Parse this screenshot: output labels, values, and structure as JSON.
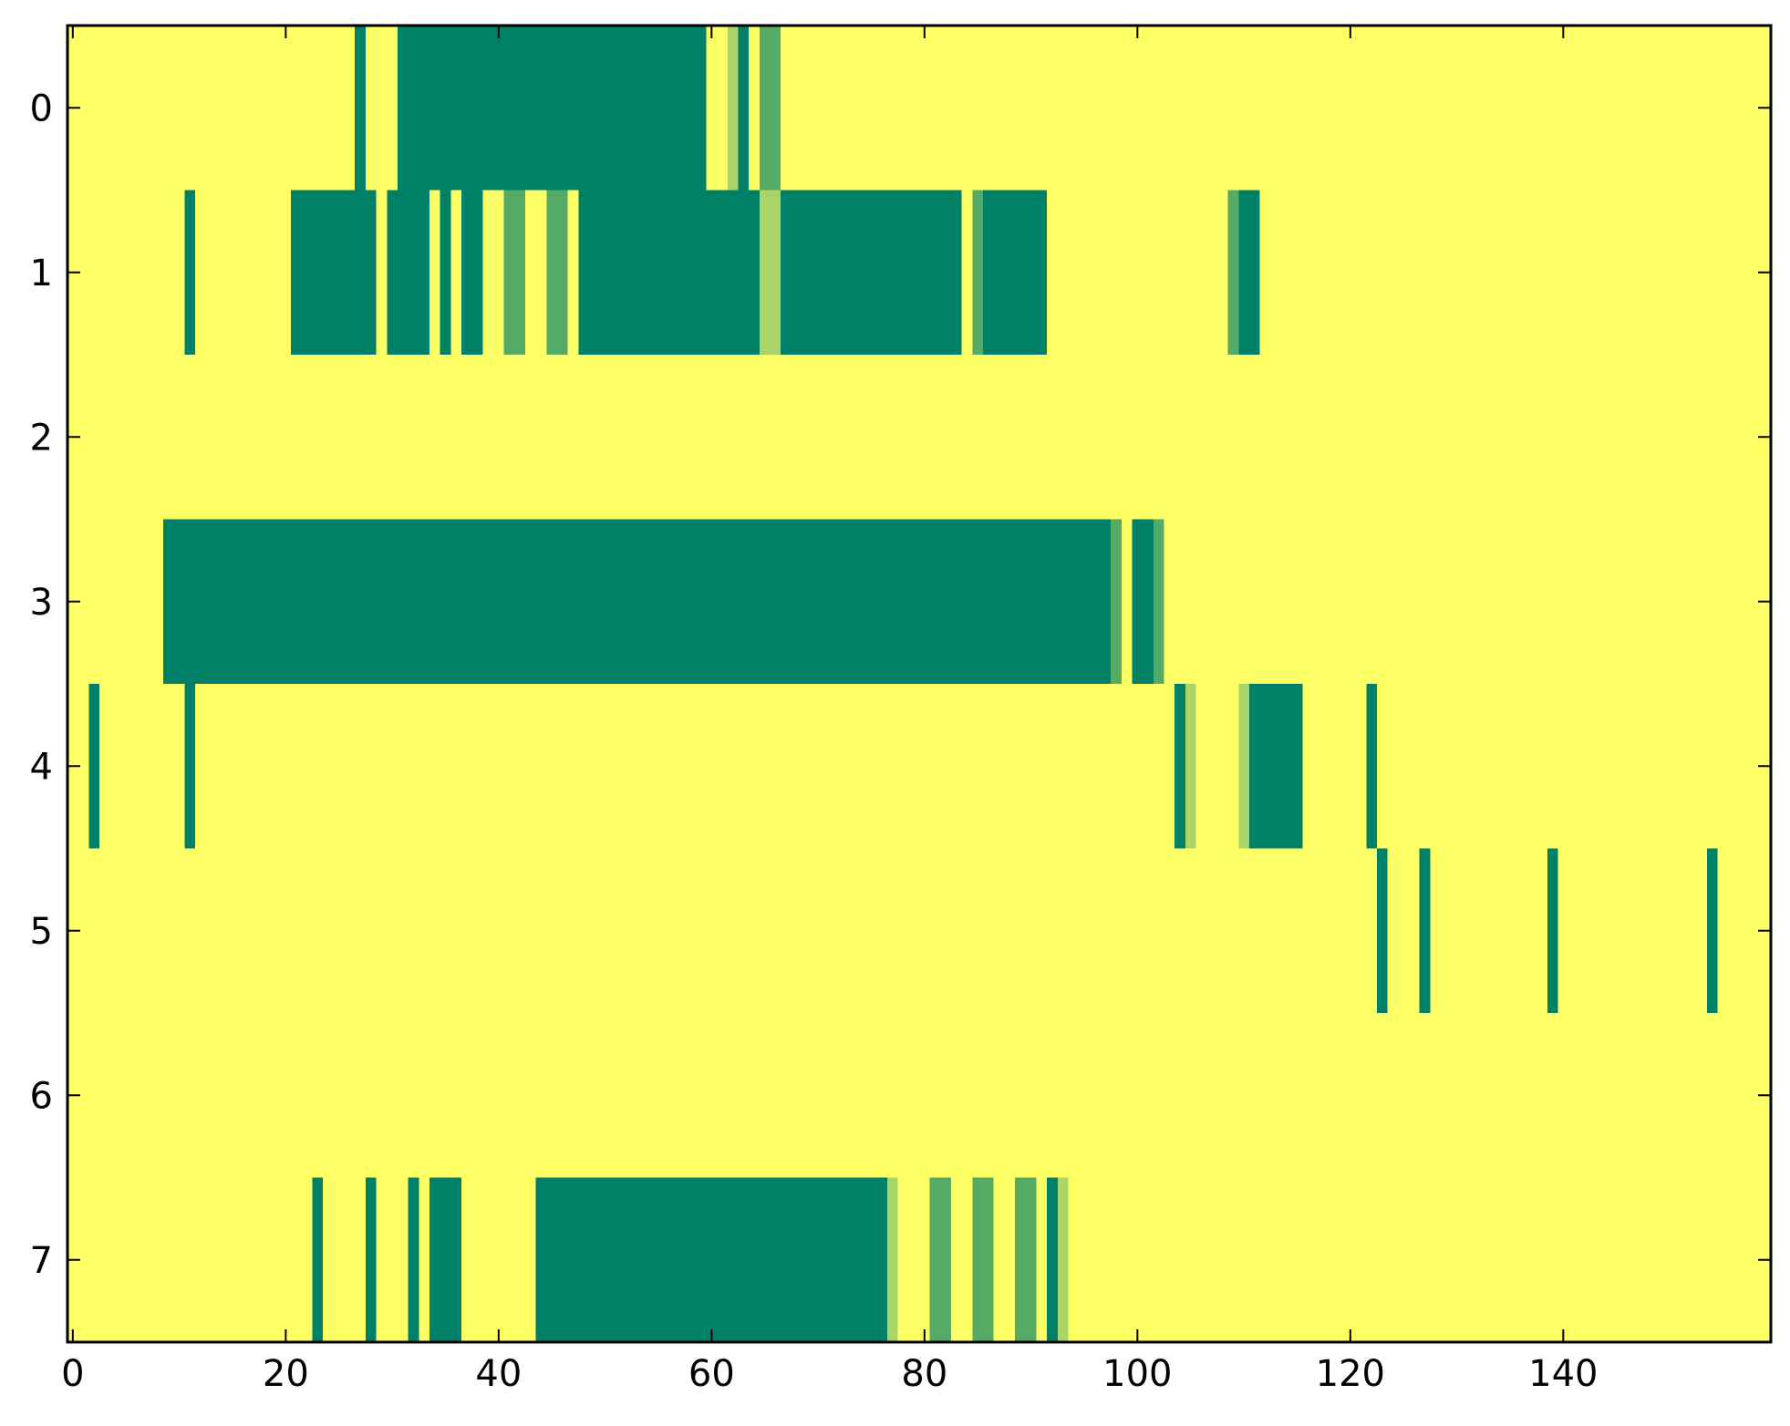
{
  "chart_data": {
    "type": "heatmap",
    "title": "",
    "xlabel": "",
    "ylabel": "",
    "n_rows": 8,
    "n_cols": 160,
    "xlim": [
      -0.5,
      159.5
    ],
    "ylim": [
      7.5,
      -0.5
    ],
    "xticks": [
      0,
      20,
      40,
      60,
      80,
      100,
      120,
      140
    ],
    "yticks": [
      0,
      1,
      2,
      3,
      4,
      5,
      6,
      7
    ],
    "xtick_labels": [
      "0",
      "20",
      "40",
      "60",
      "80",
      "100",
      "120",
      "140"
    ],
    "ytick_labels": [
      "0",
      "1",
      "2",
      "3",
      "4",
      "5",
      "6",
      "7"
    ],
    "colormap": "summer",
    "background_value": 1.0,
    "level_colors": {
      "0.0": "#008066",
      "0.33": "#55aa66",
      "0.66": "#aad566",
      "1.0": "#ffff66"
    },
    "rows": [
      {
        "row": 0,
        "segments": [
          {
            "start": 27,
            "end": 27,
            "value": 0.0
          },
          {
            "start": 31,
            "end": 59,
            "value": 0.0
          },
          {
            "start": 62,
            "end": 62,
            "value": 0.66
          },
          {
            "start": 63,
            "end": 63,
            "value": 0.0
          },
          {
            "start": 65,
            "end": 66,
            "value": 0.33
          }
        ]
      },
      {
        "row": 1,
        "segments": [
          {
            "start": 11,
            "end": 11,
            "value": 0.0
          },
          {
            "start": 21,
            "end": 28,
            "value": 0.0
          },
          {
            "start": 30,
            "end": 33,
            "value": 0.0
          },
          {
            "start": 35,
            "end": 35,
            "value": 0.0
          },
          {
            "start": 37,
            "end": 38,
            "value": 0.0
          },
          {
            "start": 41,
            "end": 42,
            "value": 0.33
          },
          {
            "start": 45,
            "end": 46,
            "value": 0.33
          },
          {
            "start": 48,
            "end": 64,
            "value": 0.0
          },
          {
            "start": 65,
            "end": 66,
            "value": 0.66
          },
          {
            "start": 67,
            "end": 83,
            "value": 0.0
          },
          {
            "start": 85,
            "end": 85,
            "value": 0.33
          },
          {
            "start": 86,
            "end": 91,
            "value": 0.0
          },
          {
            "start": 109,
            "end": 109,
            "value": 0.33
          },
          {
            "start": 110,
            "end": 111,
            "value": 0.0
          }
        ]
      },
      {
        "row": 2,
        "segments": []
      },
      {
        "row": 3,
        "segments": [
          {
            "start": 9,
            "end": 97,
            "value": 0.0
          },
          {
            "start": 98,
            "end": 98,
            "value": 0.33
          },
          {
            "start": 100,
            "end": 101,
            "value": 0.0
          },
          {
            "start": 102,
            "end": 102,
            "value": 0.33
          }
        ]
      },
      {
        "row": 4,
        "segments": [
          {
            "start": 2,
            "end": 2,
            "value": 0.0
          },
          {
            "start": 11,
            "end": 11,
            "value": 0.0
          },
          {
            "start": 104,
            "end": 104,
            "value": 0.0
          },
          {
            "start": 105,
            "end": 105,
            "value": 0.66
          },
          {
            "start": 110,
            "end": 110,
            "value": 0.66
          },
          {
            "start": 111,
            "end": 115,
            "value": 0.0
          },
          {
            "start": 122,
            "end": 122,
            "value": 0.0
          }
        ]
      },
      {
        "row": 5,
        "segments": [
          {
            "start": 123,
            "end": 123,
            "value": 0.0
          },
          {
            "start": 127,
            "end": 127,
            "value": 0.0
          },
          {
            "start": 139,
            "end": 139,
            "value": 0.0
          },
          {
            "start": 154,
            "end": 154,
            "value": 0.0
          }
        ]
      },
      {
        "row": 6,
        "segments": []
      },
      {
        "row": 7,
        "segments": [
          {
            "start": 23,
            "end": 23,
            "value": 0.0
          },
          {
            "start": 28,
            "end": 28,
            "value": 0.0
          },
          {
            "start": 32,
            "end": 32,
            "value": 0.0
          },
          {
            "start": 34,
            "end": 36,
            "value": 0.0
          },
          {
            "start": 44,
            "end": 76,
            "value": 0.0
          },
          {
            "start": 77,
            "end": 77,
            "value": 0.66
          },
          {
            "start": 81,
            "end": 82,
            "value": 0.33
          },
          {
            "start": 85,
            "end": 86,
            "value": 0.33
          },
          {
            "start": 89,
            "end": 90,
            "value": 0.33
          },
          {
            "start": 92,
            "end": 92,
            "value": 0.0
          },
          {
            "start": 93,
            "end": 93,
            "value": 0.66
          }
        ]
      }
    ]
  }
}
